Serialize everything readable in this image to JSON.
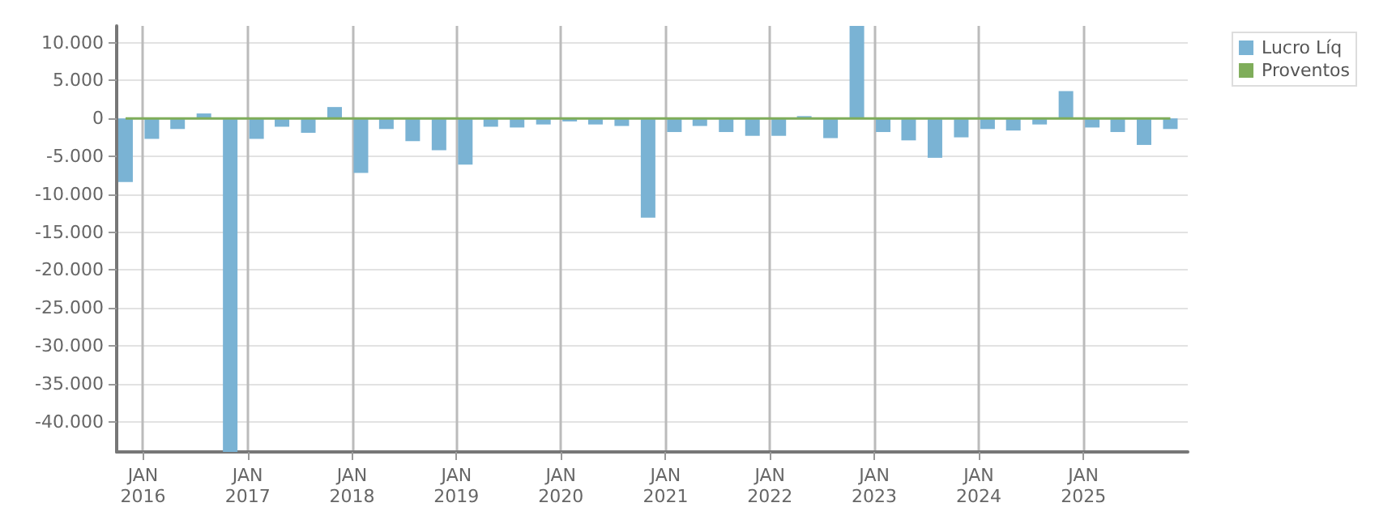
{
  "chart_data": {
    "type": "bar",
    "x": [
      "2015-11",
      "2016-02",
      "2016-05",
      "2016-08",
      "2016-11",
      "2017-02",
      "2017-05",
      "2017-08",
      "2017-11",
      "2018-02",
      "2018-05",
      "2018-08",
      "2018-11",
      "2019-02",
      "2019-05",
      "2019-08",
      "2019-11",
      "2020-02",
      "2020-05",
      "2020-08",
      "2020-11",
      "2021-02",
      "2021-05",
      "2021-08",
      "2021-11",
      "2022-02",
      "2022-05",
      "2022-08",
      "2022-11",
      "2023-02",
      "2023-05",
      "2023-08",
      "2023-11",
      "2024-02",
      "2024-05",
      "2024-08",
      "2024-11",
      "2025-02",
      "2025-05",
      "2025-08",
      "2025-11"
    ],
    "series": [
      {
        "name": "Lucro Líq",
        "color": "#7ab3d4",
        "values": [
          -8400,
          -2700,
          -1400,
          650,
          -44000,
          -2700,
          -1100,
          -1900,
          1500,
          -7200,
          -1400,
          -3000,
          -4200,
          -6100,
          -1100,
          -1200,
          -800,
          -400,
          -800,
          -1000,
          -13100,
          -1800,
          -1000,
          -1800,
          -2300,
          -2300,
          300,
          -2600,
          12200,
          -1800,
          -2900,
          -5200,
          -2500,
          -1400,
          -1600,
          -800,
          3600,
          -1200,
          -1800,
          -3500,
          -1400
        ]
      },
      {
        "name": "Proventos",
        "color": "#7fad5a",
        "type": "line",
        "values": [
          0,
          0,
          0,
          0,
          0,
          0,
          0,
          0,
          0,
          0,
          0,
          0,
          0,
          0,
          0,
          0,
          0,
          0,
          0,
          0,
          0,
          0,
          0,
          0,
          0,
          0,
          0,
          0,
          0,
          0,
          0,
          0,
          0,
          0,
          0,
          0,
          0,
          0,
          0,
          0,
          0
        ]
      }
    ],
    "xlim": [
      "2015-10",
      "2026-01"
    ],
    "xticks": [
      {
        "value": "2016-01",
        "label": "JAN\n2016"
      },
      {
        "value": "2017-01",
        "label": "JAN\n2017"
      },
      {
        "value": "2018-01",
        "label": "JAN\n2018"
      },
      {
        "value": "2019-01",
        "label": "JAN\n2019"
      },
      {
        "value": "2020-01",
        "label": "JAN\n2020"
      },
      {
        "value": "2021-01",
        "label": "JAN\n2021"
      },
      {
        "value": "2022-01",
        "label": "JAN\n2022"
      },
      {
        "value": "2023-01",
        "label": "JAN\n2023"
      },
      {
        "value": "2024-01",
        "label": "JAN\n2024"
      },
      {
        "value": "2025-01",
        "label": "JAN\n2025"
      }
    ],
    "ylim": [
      -44000,
      12200
    ],
    "yticks": [
      {
        "value": -40000,
        "label": "-40.000"
      },
      {
        "value": -35000,
        "label": "-35.000"
      },
      {
        "value": -30000,
        "label": "-30.000"
      },
      {
        "value": -25000,
        "label": "-25.000"
      },
      {
        "value": -20000,
        "label": "-20.000"
      },
      {
        "value": -15000,
        "label": "-15.000"
      },
      {
        "value": -10000,
        "label": "-10.000"
      },
      {
        "value": -5000,
        "label": "-5.000"
      },
      {
        "value": 0,
        "label": "0"
      },
      {
        "value": 5000,
        "label": "5.000"
      },
      {
        "value": 10000,
        "label": "10.000"
      }
    ],
    "grid": true,
    "legend": "top right",
    "marker": "none"
  }
}
